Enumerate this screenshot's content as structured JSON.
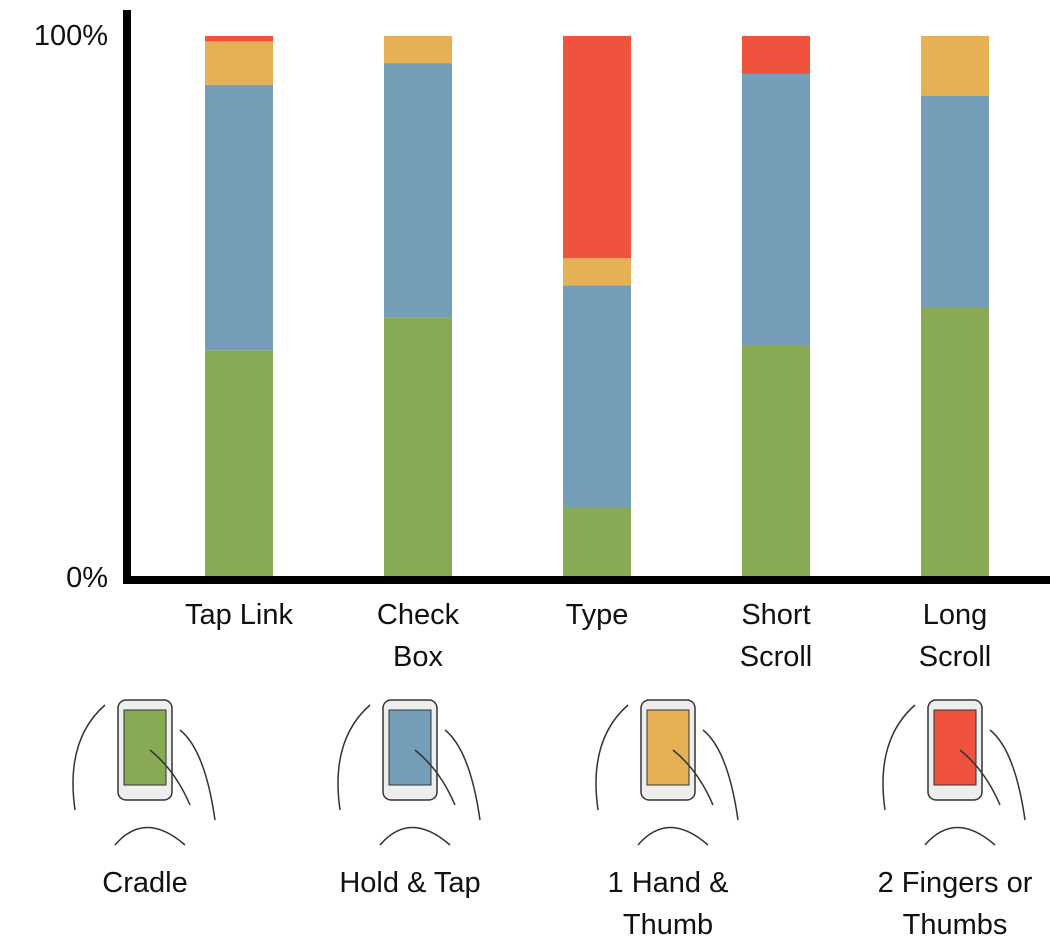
{
  "chart_data": {
    "type": "stacked-bar",
    "categories": [
      "Tap Link",
      "Check Box",
      "Type",
      "Short Scroll",
      "Long Scroll"
    ],
    "series": [
      {
        "name": "Cradle",
        "color": "#88aa55",
        "values": [
          42,
          48,
          13,
          43,
          50
        ]
      },
      {
        "name": "Hold & Tap",
        "color": "#749db8",
        "values": [
          49,
          47,
          41,
          50,
          39
        ]
      },
      {
        "name": "1 Hand & Thumb",
        "color": "#e6b055",
        "values": [
          8,
          5,
          5,
          0,
          11
        ]
      },
      {
        "name": "2 Fingers or Thumbs",
        "color": "#f0533d",
        "values": [
          1,
          0,
          41,
          7,
          0
        ]
      }
    ],
    "ylim": [
      0,
      100
    ],
    "yticks": [
      {
        "value": 0,
        "label": "0%"
      },
      {
        "value": 100,
        "label": "100%"
      }
    ]
  }
}
